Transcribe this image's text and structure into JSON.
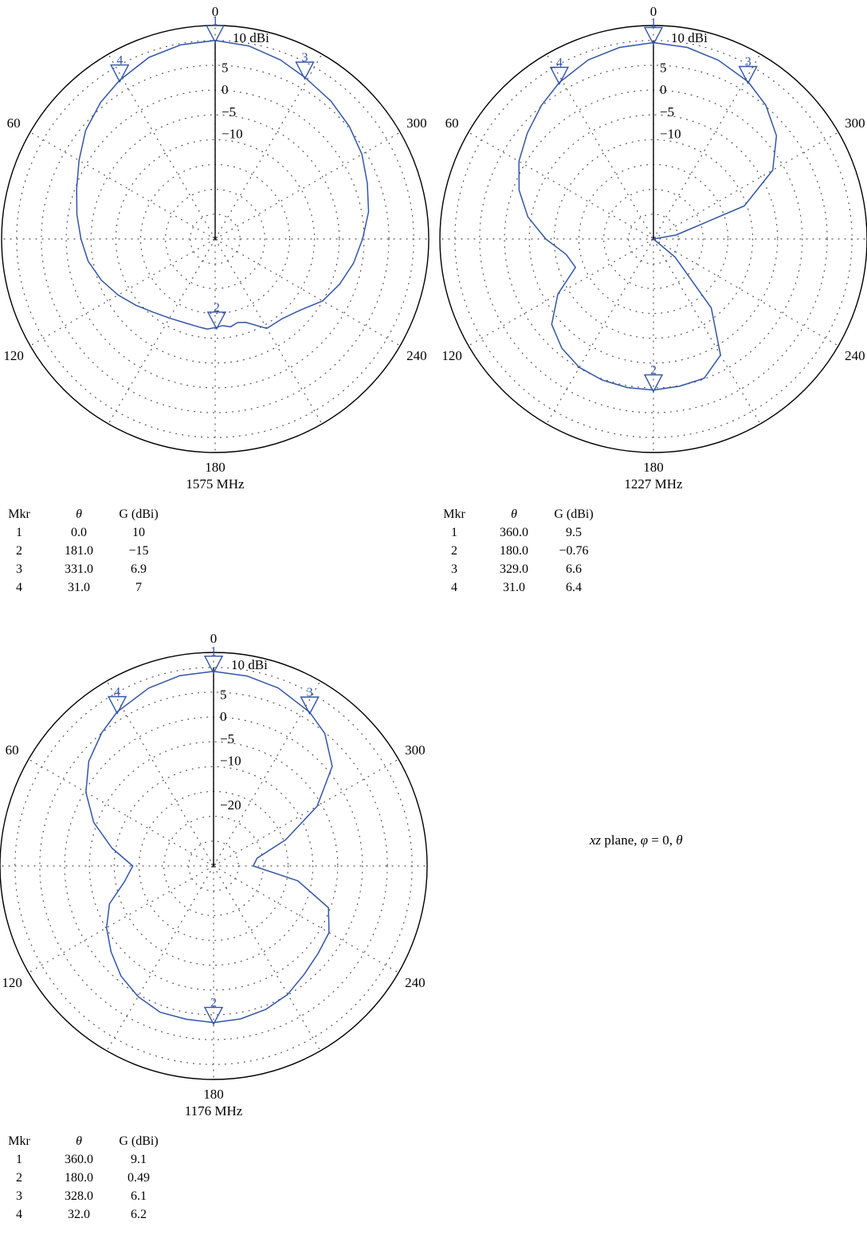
{
  "page": {
    "caption_prefix": "xz",
    "caption_rest": " plane, ",
    "caption_phi": "φ",
    "caption_mid": " = 0, ",
    "caption_theta": "θ"
  },
  "colors": {
    "pattern": "#3355a5",
    "outline": "#000000",
    "grid": "#555555"
  },
  "table_headers": {
    "mkr": "Mkr",
    "theta": "θ",
    "gain": "G (dBi)"
  },
  "chart_data": [
    {
      "type": "polar",
      "frequency": "1575 MHz",
      "angle_labels": [
        "0",
        "60",
        "120",
        "180",
        "240",
        "300"
      ],
      "radial_ticks": [
        "10 dBi",
        "5",
        "0",
        "−5",
        "−10"
      ],
      "rlim_db": [
        -35,
        10
      ],
      "grid": true,
      "markers": [
        {
          "mkr": "1",
          "theta": "0.0",
          "g": "10"
        },
        {
          "mkr": "2",
          "theta": "181.0",
          "g": "−15"
        },
        {
          "mkr": "3",
          "theta": "331.0",
          "g": "6.9"
        },
        {
          "mkr": "4",
          "theta": "31.0",
          "g": "7"
        }
      ],
      "pattern_theta": [
        0,
        10,
        20,
        31,
        40,
        50,
        60,
        70,
        80,
        90,
        100,
        110,
        120,
        130,
        140,
        150,
        160,
        170,
        175,
        181,
        185,
        190,
        195,
        200,
        210,
        220,
        230,
        240,
        250,
        260,
        270,
        280,
        290,
        300,
        310,
        320,
        331,
        340,
        350,
        360
      ],
      "pattern_gain": [
        10,
        9.7,
        8.8,
        7,
        5.4,
        3.3,
        0.6,
        -1.6,
        -3.2,
        -4.6,
        -5.8,
        -7.6,
        -9.6,
        -11.6,
        -13.3,
        -14.3,
        -14.8,
        -14.7,
        -14.5,
        -15,
        -15.3,
        -14.8,
        -15.4,
        -14.9,
        -11.6,
        -11.4,
        -9.9,
        -6.9,
        -5,
        -3.2,
        -1.6,
        0.3,
        1.7,
        3.4,
        4.7,
        5.8,
        6.9,
        8.2,
        9.4,
        10
      ]
    },
    {
      "type": "polar",
      "frequency": "1227 MHz",
      "angle_labels": [
        "0",
        "60",
        "120",
        "180",
        "240",
        "300"
      ],
      "radial_ticks": [
        "10 dBi",
        "5",
        "0",
        "−5",
        "−10"
      ],
      "rlim_db": [
        -35,
        10
      ],
      "grid": true,
      "markers": [
        {
          "mkr": "1",
          "theta": "360.0",
          "g": "9.5"
        },
        {
          "mkr": "2",
          "theta": "180.0",
          "g": "−0.76"
        },
        {
          "mkr": "3",
          "theta": "329.0",
          "g": "6.6"
        },
        {
          "mkr": "4",
          "theta": "31.0",
          "g": "6.4"
        }
      ],
      "pattern_theta": [
        0,
        10,
        20,
        31,
        40,
        50,
        60,
        70,
        80,
        90,
        100,
        110,
        120,
        130,
        140,
        150,
        160,
        170,
        180,
        190,
        200,
        210,
        220,
        230,
        240,
        250,
        260,
        270,
        280,
        290,
        300,
        310,
        320,
        329,
        340,
        350,
        360
      ],
      "pattern_gain": [
        9.5,
        9.1,
        8.2,
        6.4,
        4.5,
        2.3,
        0.2,
        -2.6,
        -6.1,
        -10.6,
        -14.9,
        -16.2,
        -10,
        -4.9,
        -2.7,
        -1.4,
        -1,
        -0.8,
        -0.76,
        -1.1,
        -1.4,
        -4.6,
        -14.6,
        -28.6,
        -35,
        -35,
        -35,
        -35,
        -29.8,
        -13.1,
        -3.8,
        1.4,
        4.6,
        6.6,
        8.1,
        9.1,
        9.5
      ]
    },
    {
      "type": "polar",
      "frequency": "1176 MHz",
      "angle_labels": [
        "0",
        "60",
        "120",
        "180",
        "240",
        "300"
      ],
      "radial_ticks": [
        "10 dBi",
        "5",
        "0",
        "−5",
        "−10",
        "−20"
      ],
      "rlim_db": [
        -35,
        10
      ],
      "grid": true,
      "markers": [
        {
          "mkr": "1",
          "theta": "360.0",
          "g": "9.1"
        },
        {
          "mkr": "2",
          "theta": "180.0",
          "g": "0.49"
        },
        {
          "mkr": "3",
          "theta": "328.0",
          "g": "6.1"
        },
        {
          "mkr": "4",
          "theta": "32.0",
          "g": "6.2"
        }
      ],
      "pattern_theta": [
        0,
        10,
        20,
        32,
        40,
        50,
        60,
        70,
        80,
        90,
        100,
        110,
        120,
        130,
        140,
        150,
        160,
        170,
        180,
        190,
        200,
        210,
        220,
        230,
        240,
        250,
        260,
        270,
        280,
        290,
        300,
        310,
        320,
        328,
        340,
        350,
        360
      ],
      "pattern_gain": [
        9.1,
        8.8,
        7.9,
        6.2,
        4.4,
        1.9,
        -1.6,
        -6.1,
        -11.6,
        -16.7,
        -14.5,
        -9.9,
        -7,
        -4.7,
        -2.4,
        -0.8,
        0.3,
        0.3,
        0.49,
        0.2,
        -0.4,
        -1.4,
        -3,
        -4.1,
        -4.8,
        -7.3,
        -15.6,
        -26,
        -25,
        -17.6,
        -7.9,
        0.1,
        4.2,
        6.1,
        7.9,
        8.7,
        9.1
      ]
    }
  ]
}
